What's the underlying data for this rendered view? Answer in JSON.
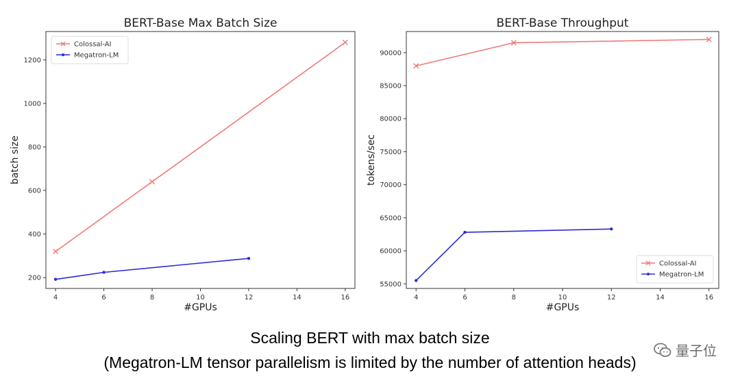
{
  "chart_data": [
    {
      "type": "line",
      "title": "BERT-Base Max Batch Size",
      "xlabel": "#GPUs",
      "ylabel": "batch size",
      "xlim": [
        3.6,
        16.4
      ],
      "ylim": [
        150,
        1330
      ],
      "xticks": [
        4,
        6,
        8,
        10,
        12,
        14,
        16
      ],
      "yticks": [
        200,
        400,
        600,
        800,
        1000,
        1200
      ],
      "legend": "top-left",
      "grid": false,
      "series": [
        {
          "name": "Colossal-AI",
          "color": "#f07878",
          "marker": "x",
          "x": [
            4,
            8,
            16
          ],
          "y": [
            320,
            640,
            1280
          ]
        },
        {
          "name": "Megatron-LM",
          "color": "#2a2ad8",
          "marker": "dot",
          "x": [
            4,
            6,
            12
          ],
          "y": [
            192,
            224,
            288
          ]
        }
      ]
    },
    {
      "type": "line",
      "title": "BERT-Base Throughput",
      "xlabel": "#GPUs",
      "ylabel": "tokens/sec",
      "xlim": [
        3.6,
        16.4
      ],
      "ylim": [
        54300,
        93200
      ],
      "xticks": [
        4,
        6,
        8,
        10,
        12,
        14,
        16
      ],
      "yticks": [
        55000,
        60000,
        65000,
        70000,
        75000,
        80000,
        85000,
        90000
      ],
      "legend": "bottom-right",
      "grid": false,
      "series": [
        {
          "name": "Colossal-AI",
          "color": "#f07878",
          "marker": "x",
          "x": [
            4,
            8,
            16
          ],
          "y": [
            88000,
            91500,
            92000
          ]
        },
        {
          "name": "Megatron-LM",
          "color": "#2a2ad8",
          "marker": "dot",
          "x": [
            4,
            6,
            12
          ],
          "y": [
            55500,
            62800,
            63300
          ]
        }
      ]
    }
  ],
  "caption": {
    "line1": "Scaling BERT with max batch size",
    "line2": "(Megatron-LM tensor parallelism is limited by the number of attention heads)"
  },
  "watermark": {
    "text": "量子位"
  }
}
